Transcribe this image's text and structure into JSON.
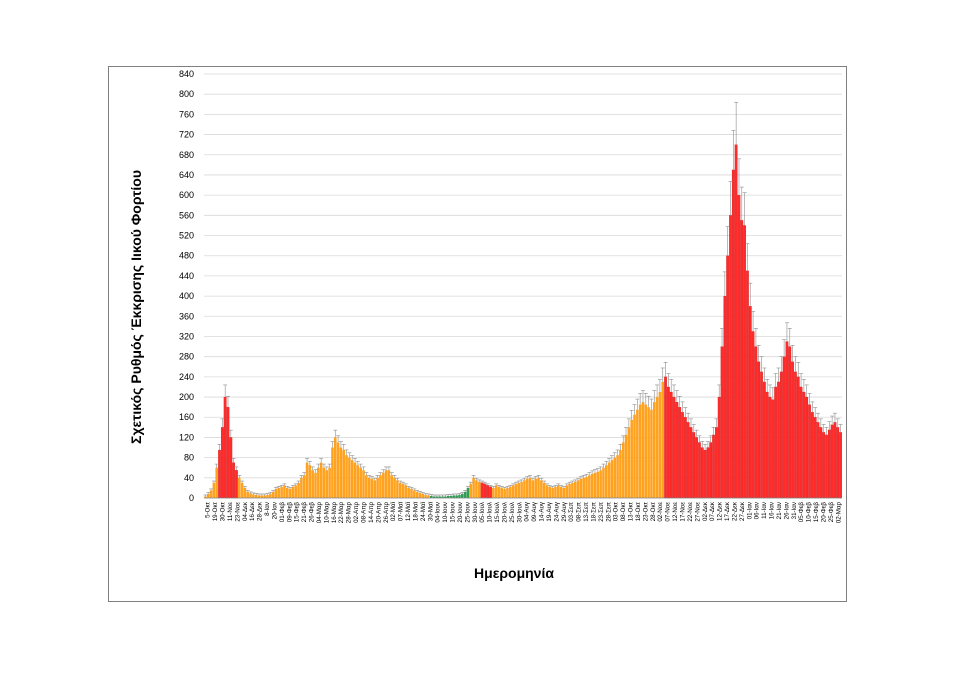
{
  "chart_data": {
    "type": "bar",
    "ylabel": "Σχετικός Ρυθμός Έκκρισης Ιικού Φορτίου",
    "xlabel": "Ημερομηνία",
    "ylim": [
      0,
      840
    ],
    "yticks": [
      0,
      40,
      80,
      120,
      160,
      200,
      240,
      280,
      320,
      360,
      400,
      440,
      480,
      520,
      560,
      600,
      640,
      680,
      720,
      760,
      800,
      840
    ],
    "grid": true,
    "legend": "none",
    "error_bars": true,
    "colors": {
      "red": "#ff2a2a",
      "orange": "#ffa21f",
      "green": "#2e9e55",
      "error": "#8c8c8c"
    },
    "tick_labels": [
      "5-Οκτ",
      "19-Οκτ",
      "30-Οκτ",
      "11-Νοε",
      "23-Νοε",
      "04-Δεκ",
      "16-Δεκ",
      "28-Δεκ",
      "8-Ιαν",
      "20-Ιαν",
      "01-Φεβ",
      "09-Φεβ",
      "15-Φεβ",
      "21-Φεβ",
      "26-Φεβ",
      "04-Μαρ",
      "10-Μαρ",
      "16-Μαρ",
      "22-Μαρ",
      "28-Μαρ",
      "02-Απρ",
      "08-Απρ",
      "14-Απρ",
      "20-Απρ",
      "26-Απρ",
      "02-Μαϊ",
      "07-Μαϊ",
      "12-Μαϊ",
      "18-Μαϊ",
      "24-Μαϊ",
      "30-Μαϊ",
      "04-Ιουν",
      "10-Ιουν",
      "15-Ιουν",
      "20-Ιουν",
      "25-Ιουν",
      "30-Ιουν",
      "05-Ιουλ",
      "10-Ιουλ",
      "15-Ιουλ",
      "20-Ιουλ",
      "25-Ιουλ",
      "30-Ιουλ",
      "04-Αυγ",
      "09-Αυγ",
      "14-Αυγ",
      "19-Αυγ",
      "24-Αυγ",
      "29-Αυγ",
      "03-Σεπ",
      "08-Σεπ",
      "13-Σεπ",
      "18-Σεπ",
      "23-Σεπ",
      "28-Σεπ",
      "03-Οκτ",
      "08-Οκτ",
      "13-Οκτ",
      "18-Οκτ",
      "23-Οκτ",
      "28-Οκτ",
      "02-Νοε",
      "07-Νοε",
      "12-Νοε",
      "17-Νοε",
      "22-Νοε",
      "27-Νοε",
      "02-Δεκ",
      "07-Δεκ",
      "12-Δεκ",
      "17-Δεκ",
      "22-Δεκ",
      "27-Δεκ",
      "01-Ιαν",
      "06-Ιαν",
      "11-Ιαν",
      "16-Ιαν",
      "21-Ιαν",
      "26-Ιαν",
      "31-Ιαν",
      "05-Φεβ",
      "10-Φεβ",
      "15-Φεβ",
      "20-Φεβ",
      "25-Φεβ",
      "02-Μαρ"
    ],
    "series": [
      {
        "values": [
          3,
          8,
          15,
          30,
          60,
          95,
          140,
          200,
          180,
          120,
          70,
          55,
          40,
          30,
          20,
          12,
          9,
          7,
          6,
          5,
          5,
          5,
          6,
          8,
          12,
          18,
          20,
          22,
          25,
          20,
          18,
          22,
          25,
          30,
          40,
          45,
          70,
          65,
          55,
          50,
          60,
          70,
          60,
          55,
          60,
          100,
          120,
          110,
          100,
          95,
          85,
          80,
          75,
          70,
          65,
          60,
          55,
          45,
          40,
          38,
          35,
          40,
          45,
          50,
          55,
          55,
          45,
          40,
          35,
          30,
          28,
          25,
          20,
          18,
          15,
          12,
          10,
          8,
          6,
          5,
          4,
          3,
          3,
          3,
          3,
          3,
          4,
          4,
          5,
          5,
          6,
          8,
          12,
          20,
          28,
          40,
          35,
          32,
          30,
          28,
          25,
          22,
          20,
          25,
          22,
          20,
          18,
          20,
          22,
          25,
          28,
          30,
          32,
          35,
          38,
          40,
          35,
          38,
          40,
          35,
          30,
          25,
          22,
          20,
          22,
          25,
          22,
          20,
          25,
          28,
          30,
          32,
          35,
          38,
          40,
          42,
          45,
          48,
          50,
          52,
          55,
          60,
          65,
          70,
          75,
          80,
          85,
          95,
          110,
          125,
          140,
          155,
          165,
          175,
          185,
          190,
          185,
          180,
          175,
          190,
          200,
          210,
          230,
          240,
          220,
          210,
          200,
          190,
          180,
          170,
          160,
          150,
          140,
          130,
          120,
          110,
          100,
          95,
          100,
          110,
          125,
          140,
          200,
          300,
          400,
          480,
          560,
          650,
          700,
          600,
          550,
          540,
          450,
          380,
          330,
          300,
          270,
          250,
          230,
          210,
          200,
          195,
          220,
          230,
          250,
          280,
          310,
          300,
          270,
          250,
          240,
          220,
          210,
          200,
          185,
          170,
          160,
          150,
          140,
          130,
          125,
          135,
          145,
          150,
          140,
          130
        ]
      }
    ],
    "bar_colors": {
      "red_ranges": [
        [
          5,
          11
        ],
        [
          98,
          101
        ],
        [
          163,
          259
        ]
      ],
      "green_ranges": [
        [
          80,
          93
        ]
      ]
    }
  }
}
